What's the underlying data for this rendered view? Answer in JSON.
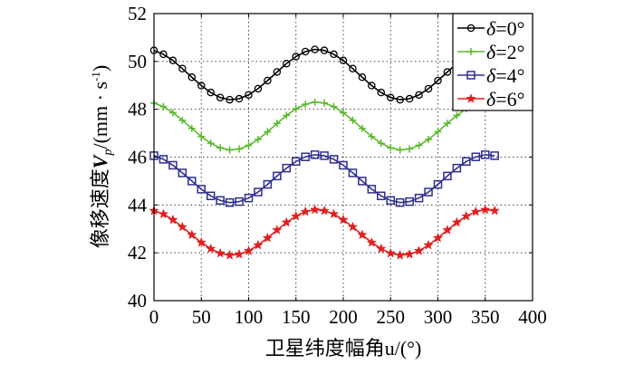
{
  "chart_data": {
    "type": "line",
    "title": "",
    "xlabel": "卫星纬度幅角u/(°)",
    "ylabel": "像移速度V_p/(mm·s⁻¹)",
    "ylabel_parts": {
      "prefix": "像移速度",
      "var": "V",
      "sub": "p",
      "unit": "/(mm · s",
      "sup": "-1",
      "close": ")"
    },
    "xlim": [
      0,
      400
    ],
    "ylim": [
      40,
      52
    ],
    "xticks": [
      0,
      50,
      100,
      150,
      200,
      250,
      300,
      350,
      400
    ],
    "yticks": [
      40,
      42,
      44,
      46,
      48,
      50,
      52
    ],
    "grid": true,
    "legend_position": "top-right",
    "x": [
      0,
      10,
      20,
      30,
      40,
      50,
      60,
      70,
      80,
      90,
      100,
      110,
      120,
      130,
      140,
      150,
      160,
      170,
      180,
      190,
      200,
      210,
      220,
      230,
      240,
      250,
      260,
      270,
      280,
      290,
      300,
      310,
      320,
      330,
      340,
      350,
      360
    ],
    "series": [
      {
        "name": "δ=0°",
        "color": "#000000",
        "marker": "circle",
        "values": [
          50.46,
          50.3,
          50.04,
          49.7,
          49.34,
          48.99,
          48.7,
          48.49,
          48.4,
          48.44,
          48.6,
          48.86,
          49.2,
          49.56,
          49.91,
          50.2,
          50.41,
          50.5,
          50.46,
          50.3,
          50.04,
          49.7,
          49.34,
          48.99,
          48.7,
          48.49,
          48.4,
          48.44,
          48.6,
          48.86,
          49.2,
          49.56,
          49.91,
          50.2,
          50.41,
          50.5,
          50.46
        ]
      },
      {
        "name": "δ=2°",
        "color": "#5cb82e",
        "marker": "plus",
        "values": [
          48.26,
          48.11,
          47.86,
          47.54,
          47.2,
          46.86,
          46.58,
          46.39,
          46.3,
          46.34,
          46.49,
          46.74,
          47.06,
          47.41,
          47.74,
          48.02,
          48.21,
          48.3,
          48.26,
          48.11,
          47.86,
          47.54,
          47.2,
          46.86,
          46.58,
          46.39,
          46.3,
          46.34,
          46.49,
          46.74,
          47.06,
          47.41,
          47.74,
          48.02,
          48.21,
          48.3,
          48.26
        ]
      },
      {
        "name": "δ=4°",
        "color": "#2e2e8f",
        "marker": "square",
        "values": [
          46.06,
          45.91,
          45.66,
          45.34,
          45.0,
          44.66,
          44.38,
          44.19,
          44.1,
          44.14,
          44.29,
          44.54,
          44.86,
          45.21,
          45.54,
          45.82,
          46.01,
          46.1,
          46.06,
          45.91,
          45.66,
          45.34,
          45.0,
          44.66,
          44.38,
          44.19,
          44.1,
          44.14,
          44.29,
          44.54,
          44.86,
          45.21,
          45.54,
          45.82,
          46.01,
          46.1,
          46.06
        ]
      },
      {
        "name": "δ=6°",
        "color": "#e02020",
        "marker": "star",
        "values": [
          43.76,
          43.62,
          43.38,
          43.08,
          42.75,
          42.43,
          42.17,
          41.98,
          41.9,
          41.94,
          42.08,
          42.32,
          42.62,
          42.95,
          43.27,
          43.53,
          43.72,
          43.8,
          43.76,
          43.62,
          43.38,
          43.08,
          42.75,
          42.43,
          42.17,
          41.98,
          41.9,
          41.94,
          42.08,
          42.32,
          42.62,
          42.95,
          43.27,
          43.53,
          43.72,
          43.8,
          43.76
        ]
      }
    ]
  }
}
